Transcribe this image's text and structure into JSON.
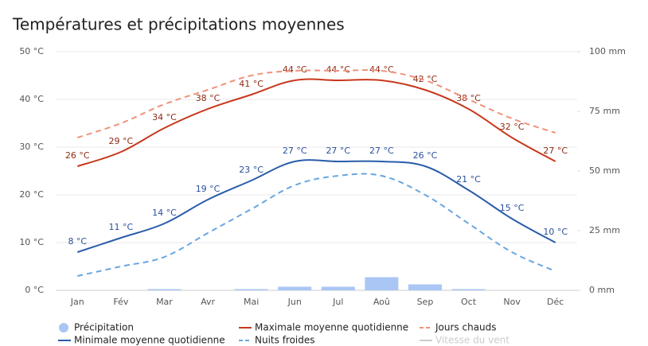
{
  "chart_data": {
    "type": "line",
    "title": "Températures et précipitations moyennes",
    "categories": [
      "Jan",
      "Fév",
      "Mar",
      "Avr",
      "Mai",
      "Jun",
      "Jul",
      "Aoû",
      "Sep",
      "Oct",
      "Nov",
      "Déc"
    ],
    "ylim": [
      0,
      50
    ],
    "yticks": [
      {
        "value": 0,
        "label": "0 °C"
      },
      {
        "value": 10,
        "label": "10 °C"
      },
      {
        "value": 20,
        "label": "20 °C"
      },
      {
        "value": 30,
        "label": "30 °C"
      },
      {
        "value": 40,
        "label": "40 °C"
      },
      {
        "value": 50,
        "label": "50 °C"
      }
    ],
    "y2lim": [
      0,
      100
    ],
    "y2ticks": [
      {
        "value": 0,
        "label": "0 mm"
      },
      {
        "value": 25,
        "label": "25 mm"
      },
      {
        "value": 50,
        "label": "50 mm"
      },
      {
        "value": 75,
        "label": "75 mm"
      },
      {
        "value": 100,
        "label": "100 mm"
      }
    ],
    "grid": true,
    "legend": "bottom",
    "series": [
      {
        "name": "Précipitation",
        "type": "bar",
        "axis": "y2",
        "color": "#a9c6f5",
        "values": [
          0,
          0,
          0.5,
          0,
          0.5,
          1.5,
          1.5,
          5.5,
          2.5,
          0.5,
          0,
          0
        ]
      },
      {
        "name": "Maximale moyenne quotidienne",
        "type": "line",
        "color": "#c8381c",
        "label_color": "#8c2a12",
        "values": [
          26,
          29,
          34,
          38,
          41,
          44,
          44,
          44,
          42,
          38,
          32,
          27
        ],
        "value_labels": [
          "26 °C",
          "29 °C",
          "34 °C",
          "38 °C",
          "41 °C",
          "44 °C",
          "44 °C",
          "44 °C",
          "42 °C",
          "38 °C",
          "32 °C",
          "27 °C"
        ]
      },
      {
        "name": "Jours chauds",
        "type": "line",
        "dashed": true,
        "color": "#f0917a",
        "values": [
          32,
          35,
          39,
          42,
          45,
          46,
          46,
          46,
          44,
          40,
          36,
          33
        ]
      },
      {
        "name": "Minimale moyenne quotidienne",
        "type": "line",
        "color": "#2a5caa",
        "label_color": "#2a4f9a",
        "values": [
          8,
          11,
          14,
          19,
          23,
          27,
          27,
          27,
          26,
          21,
          15,
          10
        ],
        "value_labels": [
          "8 °C",
          "11 °C",
          "14 °C",
          "19 °C",
          "23 °C",
          "27 °C",
          "27 °C",
          "27 °C",
          "26 °C",
          "21 °C",
          "15 °C",
          "10 °C"
        ]
      },
      {
        "name": "Nuits froides",
        "type": "line",
        "dashed": true,
        "color": "#6aa6e0",
        "values": [
          3,
          5,
          7,
          12,
          17,
          22,
          24,
          24,
          20,
          14,
          8,
          4
        ]
      },
      {
        "name": "Vitesse du vent",
        "type": "line",
        "visible": false,
        "color": "#cccccc"
      }
    ]
  }
}
